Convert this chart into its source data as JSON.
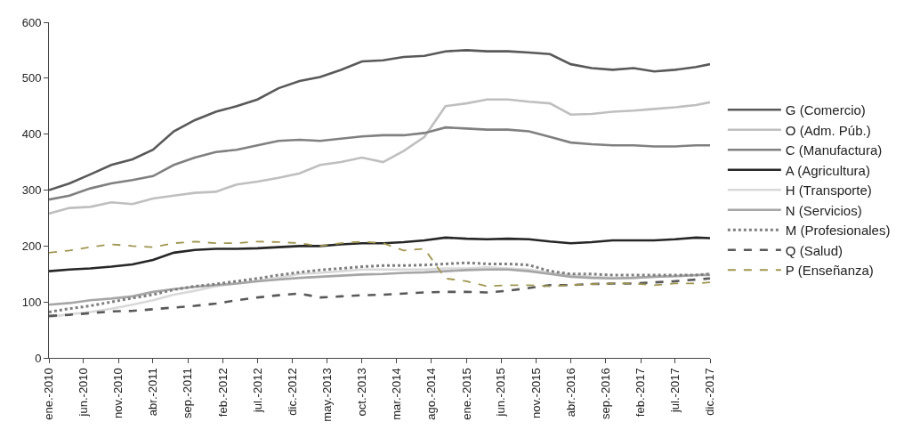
{
  "chart_data": {
    "type": "line",
    "x": [
      "2010-01",
      "2010-04",
      "2010-07",
      "2010-10",
      "2011-01",
      "2011-04",
      "2011-07",
      "2011-10",
      "2012-01",
      "2012-04",
      "2012-07",
      "2012-10",
      "2013-01",
      "2013-04",
      "2013-07",
      "2013-10",
      "2014-01",
      "2014-04",
      "2014-07",
      "2014-10",
      "2015-01",
      "2015-04",
      "2015-07",
      "2015-10",
      "2016-01",
      "2016-04",
      "2016-07",
      "2016-10",
      "2017-01",
      "2017-04",
      "2017-07",
      "2017-10",
      "2017-12"
    ],
    "series": [
      {
        "name": "G (Comercio)",
        "color": "#595959",
        "line_style": "solid",
        "values": [
          300,
          312,
          328,
          345,
          355,
          372,
          405,
          425,
          440,
          450,
          462,
          482,
          495,
          502,
          515,
          530,
          532,
          538,
          540,
          548,
          550,
          548,
          548,
          546,
          543,
          525,
          518,
          515,
          518,
          512,
          515,
          520,
          525
        ]
      },
      {
        "name": "O (Adm. Púb.)",
        "color": "#bfbfbf",
        "line_style": "solid",
        "values": [
          258,
          268,
          270,
          278,
          275,
          285,
          290,
          295,
          297,
          310,
          315,
          322,
          330,
          345,
          350,
          358,
          350,
          370,
          395,
          450,
          455,
          462,
          462,
          458,
          455,
          435,
          436,
          440,
          442,
          445,
          448,
          452,
          457
        ]
      },
      {
        "name": "C (Manufactura)",
        "color": "#808080",
        "line_style": "solid",
        "values": [
          283,
          290,
          303,
          312,
          318,
          325,
          345,
          358,
          368,
          372,
          380,
          388,
          390,
          388,
          392,
          396,
          398,
          398,
          402,
          412,
          410,
          408,
          408,
          405,
          395,
          385,
          382,
          380,
          380,
          378,
          378,
          380,
          380
        ]
      },
      {
        "name": "A (Agricultura)",
        "color": "#262626",
        "line_style": "solid",
        "values": [
          155,
          158,
          160,
          163,
          167,
          175,
          188,
          193,
          195,
          195,
          196,
          198,
          200,
          200,
          203,
          205,
          205,
          207,
          210,
          215,
          213,
          212,
          213,
          212,
          208,
          205,
          207,
          210,
          210,
          210,
          212,
          215,
          214
        ]
      },
      {
        "name": "H (Transporte)",
        "color": "#d9d9d9",
        "line_style": "solid",
        "values": [
          73,
          78,
          82,
          88,
          95,
          103,
          113,
          120,
          128,
          133,
          138,
          143,
          150,
          152,
          155,
          158,
          158,
          158,
          158,
          160,
          160,
          162,
          160,
          158,
          152,
          148,
          145,
          143,
          143,
          145,
          146,
          148,
          150
        ]
      },
      {
        "name": "N (Servicios)",
        "color": "#a6a6a6",
        "line_style": "solid",
        "values": [
          95,
          98,
          103,
          106,
          110,
          118,
          123,
          127,
          130,
          133,
          137,
          140,
          143,
          145,
          147,
          149,
          150,
          152,
          153,
          155,
          157,
          158,
          158,
          155,
          150,
          145,
          143,
          142,
          143,
          145,
          146,
          148,
          148
        ]
      },
      {
        "name": "M (Profesionales)",
        "color": "#7f7f7f",
        "line_style": "dotted",
        "values": [
          82,
          88,
          93,
          100,
          107,
          113,
          122,
          128,
          132,
          137,
          142,
          148,
          153,
          157,
          160,
          163,
          165,
          165,
          166,
          168,
          170,
          168,
          168,
          166,
          155,
          150,
          150,
          148,
          148,
          148,
          148,
          148,
          150
        ]
      },
      {
        "name": "Q (Salud)",
        "color": "#595959",
        "line_style": "dashed",
        "values": [
          75,
          77,
          80,
          83,
          84,
          87,
          90,
          93,
          97,
          103,
          108,
          112,
          115,
          108,
          110,
          112,
          113,
          115,
          117,
          118,
          118,
          117,
          120,
          125,
          130,
          130,
          132,
          133,
          133,
          135,
          137,
          140,
          142
        ]
      },
      {
        "name": "P (Enseñanza)",
        "color": "#a09650",
        "line_style": "dashed",
        "values": [
          188,
          192,
          198,
          203,
          200,
          198,
          205,
          208,
          205,
          205,
          208,
          207,
          205,
          200,
          205,
          208,
          205,
          192,
          195,
          142,
          137,
          128,
          130,
          130,
          128,
          130,
          132,
          133,
          133,
          130,
          133,
          133,
          135
        ]
      }
    ],
    "xlim": [
      "2010-01",
      "2017-12"
    ],
    "xticks": [
      {
        "value": "2010-01",
        "label": "ene.-2010"
      },
      {
        "value": "2010-06",
        "label": "jun.-2010"
      },
      {
        "value": "2010-11",
        "label": "nov.-2010"
      },
      {
        "value": "2011-04",
        "label": "abr.-2011"
      },
      {
        "value": "2011-09",
        "label": "sep.-2011"
      },
      {
        "value": "2012-02",
        "label": "feb.-2012"
      },
      {
        "value": "2012-07",
        "label": "jul.-2012"
      },
      {
        "value": "2012-12",
        "label": "dic.-2012"
      },
      {
        "value": "2013-05",
        "label": "may.-2013"
      },
      {
        "value": "2013-10",
        "label": "oct.-2013"
      },
      {
        "value": "2014-03",
        "label": "mar.-2014"
      },
      {
        "value": "2014-08",
        "label": "ago.-2014"
      },
      {
        "value": "2015-01",
        "label": "ene.-2015"
      },
      {
        "value": "2015-06",
        "label": "jun.-2015"
      },
      {
        "value": "2015-11",
        "label": "nov.-2015"
      },
      {
        "value": "2016-04",
        "label": "abr.-2016"
      },
      {
        "value": "2016-09",
        "label": "sep.-2016"
      },
      {
        "value": "2017-02",
        "label": "feb.-2017"
      },
      {
        "value": "2017-07",
        "label": "jul.-2017"
      },
      {
        "value": "2017-12",
        "label": "dic.-2017"
      }
    ],
    "ylim": [
      0,
      600
    ],
    "yticks": [
      0,
      100,
      200,
      300,
      400,
      500,
      600
    ],
    "legend": "right",
    "marker": "none"
  }
}
